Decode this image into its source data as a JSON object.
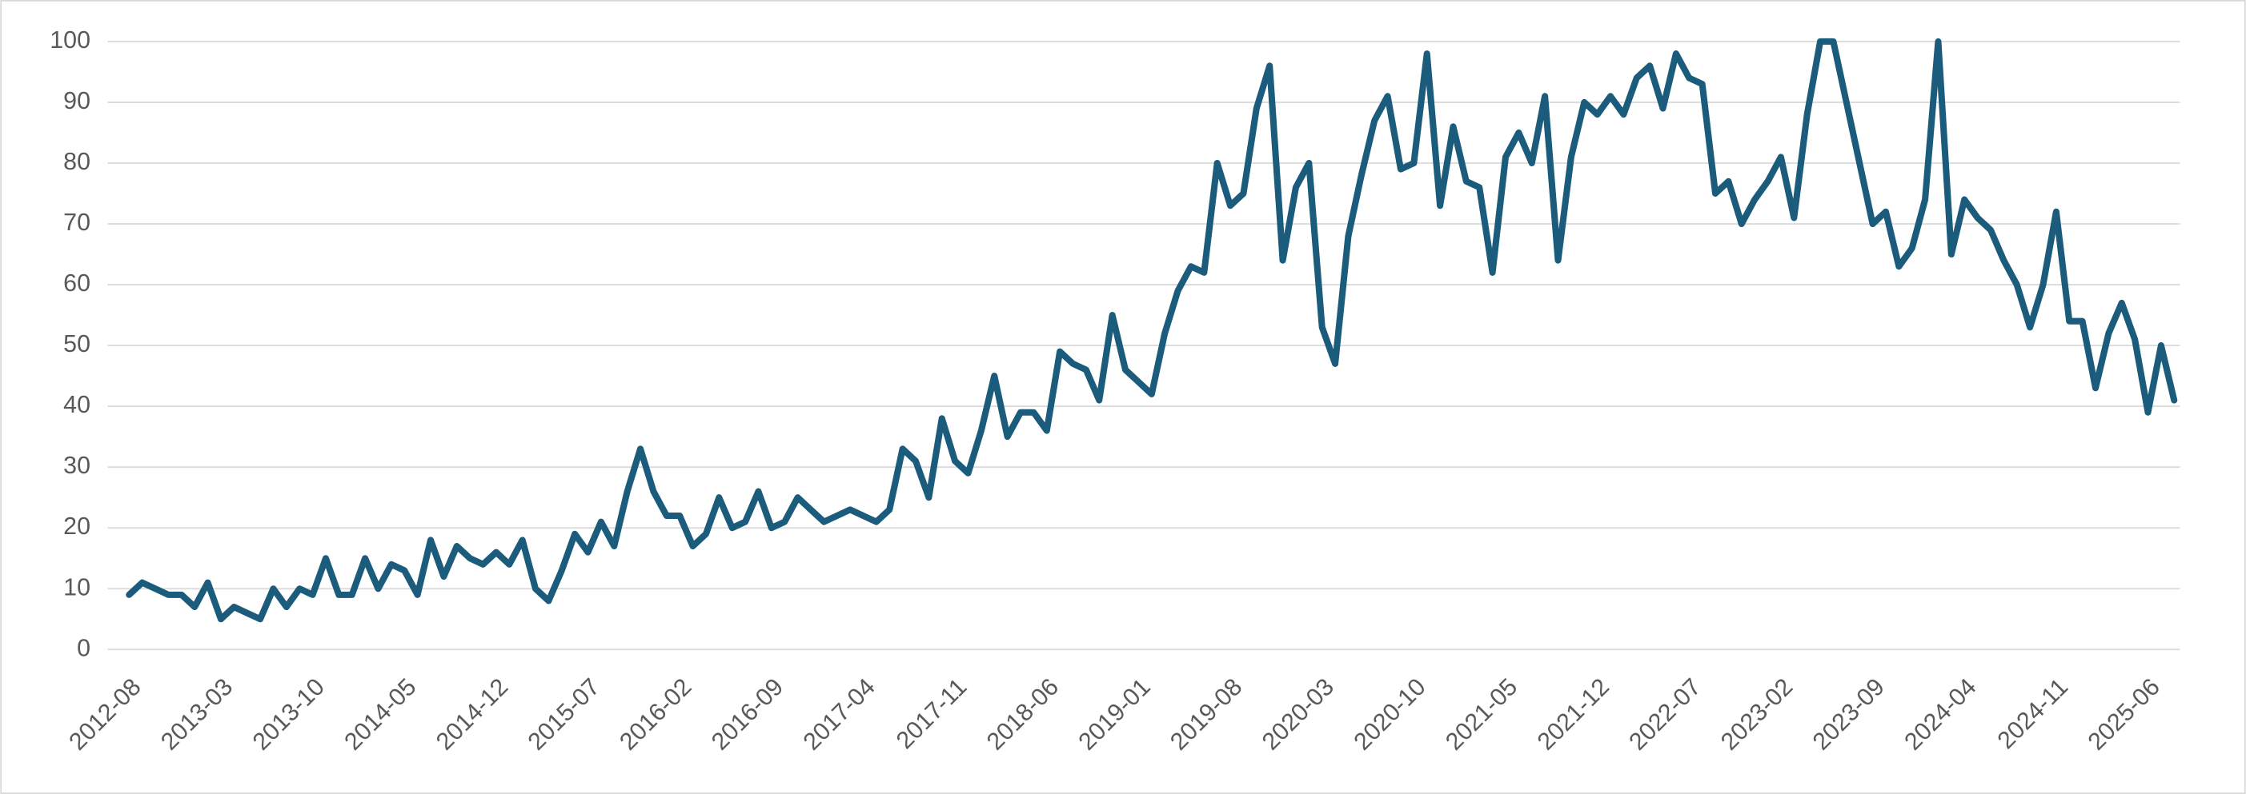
{
  "chart_data": {
    "type": "line",
    "categories": [
      "2012-08",
      null,
      null,
      null,
      null,
      null,
      null,
      "2013-03",
      null,
      null,
      null,
      null,
      null,
      null,
      "2013-10",
      null,
      null,
      null,
      null,
      null,
      null,
      "2014-05",
      null,
      null,
      null,
      null,
      null,
      null,
      "2014-12",
      null,
      null,
      null,
      null,
      null,
      null,
      "2015-07",
      null,
      null,
      null,
      null,
      null,
      null,
      "2016-02",
      null,
      null,
      null,
      null,
      null,
      null,
      "2016-09",
      null,
      null,
      null,
      null,
      null,
      null,
      "2017-04",
      null,
      null,
      null,
      null,
      null,
      null,
      "2017-11",
      null,
      null,
      null,
      null,
      null,
      null,
      "2018-06",
      null,
      null,
      null,
      null,
      null,
      null,
      "2019-01",
      null,
      null,
      null,
      null,
      null,
      null,
      "2019-08",
      null,
      null,
      null,
      null,
      null,
      null,
      "2020-03",
      null,
      null,
      null,
      null,
      null,
      null,
      "2020-10",
      null,
      null,
      null,
      null,
      null,
      null,
      "2021-05",
      null,
      null,
      null,
      null,
      null,
      null,
      "2021-12",
      null,
      null,
      null,
      null,
      null,
      null,
      "2022-07",
      null,
      null,
      null,
      null,
      null,
      null,
      "2023-02",
      null,
      null,
      null,
      null,
      null,
      null,
      "2023-09",
      null,
      null,
      null,
      null,
      null,
      null,
      "2024-04",
      null,
      null,
      null,
      null,
      null,
      null,
      "2024-11",
      null,
      null,
      null,
      null,
      null,
      null,
      "2025-06",
      null,
      null
    ],
    "values": [
      9,
      11,
      10,
      9,
      9,
      7,
      11,
      5,
      7,
      6,
      5,
      10,
      7,
      10,
      9,
      15,
      9,
      9,
      15,
      10,
      14,
      13,
      9,
      18,
      12,
      17,
      15,
      14,
      16,
      14,
      18,
      10,
      8,
      13,
      19,
      16,
      21,
      17,
      26,
      33,
      26,
      22,
      22,
      17,
      19,
      25,
      20,
      21,
      26,
      20,
      21,
      25,
      23,
      21,
      22,
      23,
      22,
      21,
      23,
      33,
      31,
      25,
      38,
      31,
      29,
      36,
      45,
      35,
      39,
      39,
      36,
      49,
      47,
      46,
      41,
      55,
      46,
      44,
      42,
      52,
      59,
      63,
      62,
      80,
      73,
      75,
      89,
      96,
      64,
      76,
      80,
      53,
      47,
      68,
      78,
      87,
      91,
      79,
      80,
      98,
      73,
      86,
      77,
      76,
      62,
      81,
      85,
      80,
      91,
      64,
      81,
      90,
      88,
      91,
      88,
      94,
      96,
      89,
      98,
      94,
      93,
      75,
      77,
      70,
      74,
      77,
      81,
      71,
      88,
      100,
      100,
      90,
      80,
      70,
      72,
      63,
      66,
      74,
      100,
      65,
      74,
      71,
      69,
      64,
      60,
      53,
      60,
      72,
      54,
      54,
      43,
      52,
      57,
      51,
      39,
      50,
      41
    ],
    "color": "#1b5b7b",
    "ylim": [
      0,
      100
    ],
    "yticks": [
      0,
      10,
      20,
      30,
      40,
      50,
      60,
      70,
      80,
      90,
      100
    ],
    "grid": true
  }
}
